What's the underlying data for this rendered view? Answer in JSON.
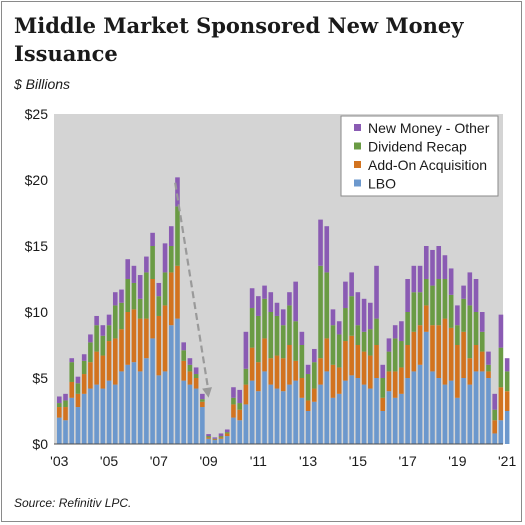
{
  "title": "Middle Market Sponsored New Money Issuance",
  "subtitle": "$ Billions",
  "source": "Source: Refinitiv LPC.",
  "chart_data": {
    "type": "bar",
    "stacked": true,
    "quarters": [
      "2003Q1",
      "2003Q2",
      "2003Q3",
      "2003Q4",
      "2004Q1",
      "2004Q2",
      "2004Q3",
      "2004Q4",
      "2005Q1",
      "2005Q2",
      "2005Q3",
      "2005Q4",
      "2006Q1",
      "2006Q2",
      "2006Q3",
      "2006Q4",
      "2007Q1",
      "2007Q2",
      "2007Q3",
      "2007Q4",
      "2008Q1",
      "2008Q2",
      "2008Q3",
      "2008Q4",
      "2009Q1",
      "2009Q2",
      "2009Q3",
      "2009Q4",
      "2010Q1",
      "2010Q2",
      "2010Q3",
      "2010Q4",
      "2011Q1",
      "2011Q2",
      "2011Q3",
      "2011Q4",
      "2012Q1",
      "2012Q2",
      "2012Q3",
      "2012Q4",
      "2013Q1",
      "2013Q2",
      "2013Q3",
      "2013Q4",
      "2014Q1",
      "2014Q2",
      "2014Q3",
      "2014Q4",
      "2015Q1",
      "2015Q2",
      "2015Q3",
      "2015Q4",
      "2016Q1",
      "2016Q2",
      "2016Q3",
      "2016Q4",
      "2017Q1",
      "2017Q2",
      "2017Q3",
      "2017Q4",
      "2018Q1",
      "2018Q2",
      "2018Q3",
      "2018Q4",
      "2019Q1",
      "2019Q2",
      "2019Q3",
      "2019Q4",
      "2020Q1",
      "2020Q2",
      "2020Q3",
      "2020Q4",
      "2021Q1"
    ],
    "series": [
      {
        "name": "LBO",
        "color": "#6c98cd",
        "values": [
          2.0,
          1.8,
          3.5,
          2.8,
          3.8,
          4.2,
          4.5,
          4.2,
          4.8,
          4.5,
          5.5,
          6.0,
          6.2,
          5.5,
          6.5,
          8.0,
          5.2,
          5.5,
          9.0,
          9.5,
          4.8,
          4.5,
          4.2,
          2.8,
          0.4,
          0.3,
          0.4,
          0.6,
          2.0,
          1.8,
          3.0,
          4.8,
          4.0,
          5.5,
          4.5,
          4.2,
          4.0,
          4.5,
          4.8,
          3.5,
          2.5,
          3.2,
          4.5,
          5.5,
          3.5,
          3.8,
          4.8,
          5.2,
          5.0,
          4.5,
          4.2,
          5.0,
          2.5,
          4.0,
          3.5,
          3.8,
          5.0,
          5.5,
          6.0,
          8.5,
          5.5,
          5.0,
          4.5,
          4.8,
          3.5,
          5.0,
          4.5,
          5.5,
          5.5,
          5.0,
          0.8,
          1.8,
          2.5
        ]
      },
      {
        "name": "Add-On Acquisition",
        "color": "#d2731f",
        "values": [
          0.8,
          1.0,
          1.2,
          1.0,
          1.5,
          2.0,
          2.5,
          2.5,
          3.0,
          3.5,
          3.2,
          4.0,
          4.0,
          4.0,
          3.0,
          4.5,
          4.5,
          5.0,
          4.0,
          4.0,
          1.5,
          1.0,
          0.8,
          0.4,
          0.1,
          0.05,
          0.1,
          0.2,
          1.0,
          0.8,
          1.5,
          2.5,
          2.2,
          2.5,
          2.0,
          2.5,
          2.5,
          3.0,
          1.5,
          1.5,
          0.8,
          1.0,
          2.0,
          2.5,
          2.5,
          2.0,
          3.0,
          3.0,
          2.5,
          2.5,
          2.5,
          2.5,
          1.0,
          1.5,
          2.0,
          2.0,
          2.5,
          3.0,
          3.0,
          2.0,
          3.5,
          4.0,
          5.0,
          4.0,
          4.0,
          3.5,
          2.0,
          2.0,
          1.5,
          0.5,
          1.0,
          2.5,
          1.5
        ]
      },
      {
        "name": "Dividend Recap",
        "color": "#6a9b44",
        "values": [
          0.3,
          0.5,
          1.5,
          0.8,
          1.0,
          1.5,
          2.0,
          1.5,
          1.2,
          2.5,
          2.0,
          2.5,
          2.0,
          1.5,
          3.5,
          2.5,
          1.5,
          2.5,
          2.0,
          4.5,
          0.8,
          0.5,
          0.3,
          0.2,
          0.1,
          0.05,
          0.1,
          0.1,
          0.5,
          0.5,
          1.2,
          3.0,
          3.5,
          3.0,
          3.5,
          3.0,
          2.5,
          3.0,
          3.0,
          2.5,
          2.0,
          2.0,
          7.0,
          5.0,
          3.0,
          2.5,
          2.5,
          3.0,
          1.5,
          1.5,
          2.0,
          2.0,
          1.5,
          1.5,
          2.5,
          2.0,
          2.5,
          3.0,
          2.5,
          2.0,
          3.0,
          3.5,
          3.0,
          2.5,
          1.5,
          2.5,
          4.0,
          2.5,
          1.5,
          0.5,
          0.8,
          3.0,
          1.5
        ]
      },
      {
        "name": "New Money - Other",
        "color": "#8a5bb3",
        "values": [
          0.5,
          0.5,
          0.3,
          0.5,
          0.5,
          0.6,
          0.7,
          0.8,
          0.8,
          1.0,
          1.0,
          1.5,
          1.3,
          1.8,
          1.2,
          1.0,
          1.0,
          2.2,
          1.5,
          2.2,
          0.6,
          0.5,
          0.5,
          0.4,
          0.15,
          0.1,
          0.2,
          0.2,
          0.8,
          1.0,
          2.8,
          1.5,
          1.5,
          1.0,
          1.5,
          1.0,
          1.2,
          1.0,
          3.0,
          1.0,
          0.7,
          1.0,
          3.5,
          3.5,
          1.2,
          1.0,
          2.0,
          1.8,
          2.5,
          2.5,
          2.0,
          4.0,
          1.0,
          1.0,
          1.0,
          1.5,
          2.5,
          2.0,
          2.0,
          2.5,
          2.7,
          2.5,
          1.8,
          2.0,
          1.5,
          1.0,
          2.5,
          2.5,
          1.5,
          1.0,
          1.2,
          2.5,
          1.0
        ]
      }
    ],
    "legend": [
      "New Money - Other",
      "Dividend Recap",
      "Add-On Acquisition",
      "LBO"
    ],
    "legend_position": "top-right",
    "xticks": [
      "'03",
      "'05",
      "'07",
      "'09",
      "'11",
      "'13",
      "'15",
      "'17",
      "'19",
      "'21"
    ],
    "xtick_quarter_index": [
      0,
      8,
      16,
      24,
      32,
      40,
      48,
      56,
      64,
      72
    ],
    "yticks": [
      "$0",
      "$5",
      "$10",
      "$15",
      "$20",
      "$25"
    ],
    "ylim": [
      0,
      25
    ],
    "annotation": {
      "type": "dashed-arrow",
      "from": "2007Q4",
      "to": "2009Q1",
      "meaning": "decline"
    },
    "plot_background": "#d4d4d4",
    "grid": false
  }
}
